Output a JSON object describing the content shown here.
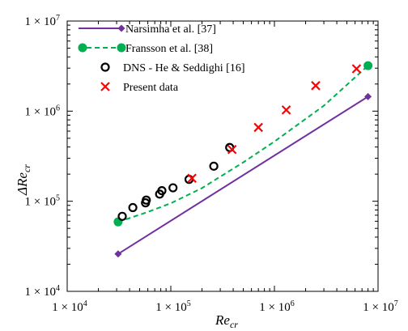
{
  "chart_data": {
    "type": "line",
    "x_scale": "log",
    "y_scale": "log",
    "xlim": [
      10000,
      10000000
    ],
    "ylim": [
      10000,
      10000000
    ],
    "xlabel": {
      "base": "Re",
      "sub": "cr"
    },
    "ylabel": {
      "base": "ΔRe",
      "sub": "cr"
    },
    "x_tick_labels": [
      {
        "value": 10000,
        "mant": "1 × 10",
        "exp": "4"
      },
      {
        "value": 100000,
        "mant": "1 × 10",
        "exp": "5"
      },
      {
        "value": 1000000,
        "mant": "1 × 10",
        "exp": "6"
      },
      {
        "value": 10000000,
        "mant": "1 × 10",
        "exp": "7"
      }
    ],
    "y_tick_labels": [
      {
        "value": 10000,
        "mant": "1 × 10",
        "exp": "4"
      },
      {
        "value": 100000,
        "mant": "1 × 10",
        "exp": "5"
      },
      {
        "value": 1000000,
        "mant": "1 × 10",
        "exp": "6"
      },
      {
        "value": 10000000,
        "mant": "1 × 10",
        "exp": "7"
      }
    ],
    "grid": false,
    "legend_position": "top-left",
    "series": [
      {
        "name": "Narsimha et al. [37]",
        "style": "solid-line-diamond-ends",
        "color": "#7030A0",
        "x": [
          31000,
          8000000
        ],
        "y": [
          26000,
          1450000
        ]
      },
      {
        "name": "Fransson et al. [38]",
        "style": "dashed-curve-circle-ends",
        "color": "#00B050",
        "x": [
          31000,
          40000,
          60000,
          100000,
          200000,
          500000,
          1000000,
          3000000,
          8000000
        ],
        "y": [
          59000,
          65000,
          76000,
          95000,
          140000,
          270000,
          460000,
          1150000,
          3200000
        ]
      },
      {
        "name": "DNS - He & Seddighi [16]",
        "style": "open-circle",
        "color": "#000000",
        "x": [
          34000,
          43000,
          57000,
          58000,
          78000,
          82000,
          105000,
          150000,
          260000,
          370000
        ],
        "y": [
          68000,
          85000,
          96000,
          103000,
          120000,
          131000,
          141000,
          175000,
          245000,
          395000
        ]
      },
      {
        "name": "Present data",
        "style": "cross",
        "color": "#FF0000",
        "x": [
          160000,
          390000,
          700000,
          1300000,
          2500000,
          6200000
        ],
        "y": [
          180000,
          375000,
          660000,
          1030000,
          1920000,
          2950000
        ]
      }
    ]
  }
}
